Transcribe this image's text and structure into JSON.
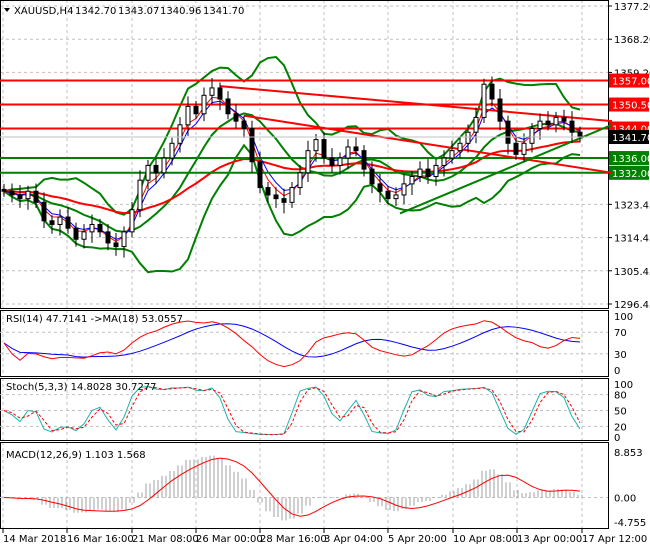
{
  "header": {
    "symbol": "XAUUSD,H4",
    "open": "1342.70",
    "high": "1343.07",
    "low": "1340.96",
    "close": "1341.70"
  },
  "chart_data": [
    {
      "type": "candlestick",
      "title": "XAUUSD,H4",
      "ylim": [
        1296.45,
        1377.2
      ],
      "y_ticks": [
        "1377.20",
        "1368.20",
        "1359.20",
        "1323.45",
        "1314.45",
        "1305.45",
        "1296.45"
      ],
      "x_ticks": [
        "14 Mar 2018",
        "16 Mar 16:00",
        "21 Mar 08:00",
        "26 Mar 00:00",
        "28 Mar 16:00",
        "3 Apr 04:00",
        "5 Apr 20:00",
        "10 Apr 08:00",
        "13 Apr 00:00",
        "17 Apr 12:00"
      ],
      "closes": [
        1327,
        1326,
        1325,
        1327,
        1324,
        1319,
        1318,
        1320,
        1317,
        1314,
        1316,
        1318,
        1316,
        1313,
        1312,
        1316,
        1322,
        1330,
        1334,
        1332,
        1336,
        1340,
        1345,
        1350,
        1348,
        1353,
        1355,
        1352,
        1348,
        1346,
        1344,
        1335,
        1328,
        1326,
        1325,
        1324,
        1328,
        1332,
        1338,
        1341,
        1336,
        1334,
        1336,
        1339,
        1338,
        1333,
        1329,
        1327,
        1325,
        1326,
        1329,
        1331,
        1333,
        1331,
        1334,
        1336,
        1338,
        1340,
        1343,
        1347,
        1356,
        1352,
        1346,
        1340,
        1337,
        1340,
        1344,
        1346,
        1345,
        1347,
        1346,
        1343,
        1341.7
      ],
      "levels": [
        {
          "price": 1357.0,
          "label": "1357.00",
          "color": "#ff0000"
        },
        {
          "price": 1350.5,
          "label": "1350.50",
          "color": "#ff0000"
        },
        {
          "price": 1344.0,
          "label": "1344.00",
          "color": "#ff0000"
        },
        {
          "price": 1336.0,
          "label": "1336.00",
          "color": "#008000"
        },
        {
          "price": 1332.0,
          "label": "1332.00",
          "color": "#008000"
        }
      ],
      "trendlines": [
        {
          "from": [
            27,
            1355.5
          ],
          "to": [
            76,
            1346
          ],
          "color": "#ff0000"
        },
        {
          "from": [
            30,
            1347.5
          ],
          "to": [
            76,
            1332
          ],
          "color": "#ff0000"
        },
        {
          "from": [
            49.5,
            1321
          ],
          "to": [
            76,
            1345
          ],
          "color": "#008000"
        }
      ],
      "current_price": {
        "value": 1341.7,
        "label": "1341.70"
      }
    },
    {
      "type": "line",
      "title": "RSI(14) 47.7141  ->MA(18) 53.0557",
      "ylim": [
        0,
        100
      ],
      "y_ticks": [
        "100",
        "70",
        "30",
        "0"
      ],
      "colors": {
        "rsi": "#ff0000",
        "ma": "#0000ff"
      }
    },
    {
      "type": "line",
      "title": "Stoch(5,3,3) 14.8028 30.7277",
      "ylim": [
        0,
        100
      ],
      "y_ticks": [
        "100",
        "80",
        "50",
        "20",
        "0"
      ],
      "colors": {
        "main": "#20b2aa",
        "signal": "#ff0000"
      }
    },
    {
      "type": "bar",
      "title": "MACD(12,26,9) 1.103 1.568",
      "ylim": [
        -4.755,
        8.853
      ],
      "y_ticks": [
        "8.853",
        "0.00",
        "-4.755"
      ],
      "colors": {
        "hist": "#a0a0a0",
        "signal": "#ff0000"
      }
    }
  ]
}
